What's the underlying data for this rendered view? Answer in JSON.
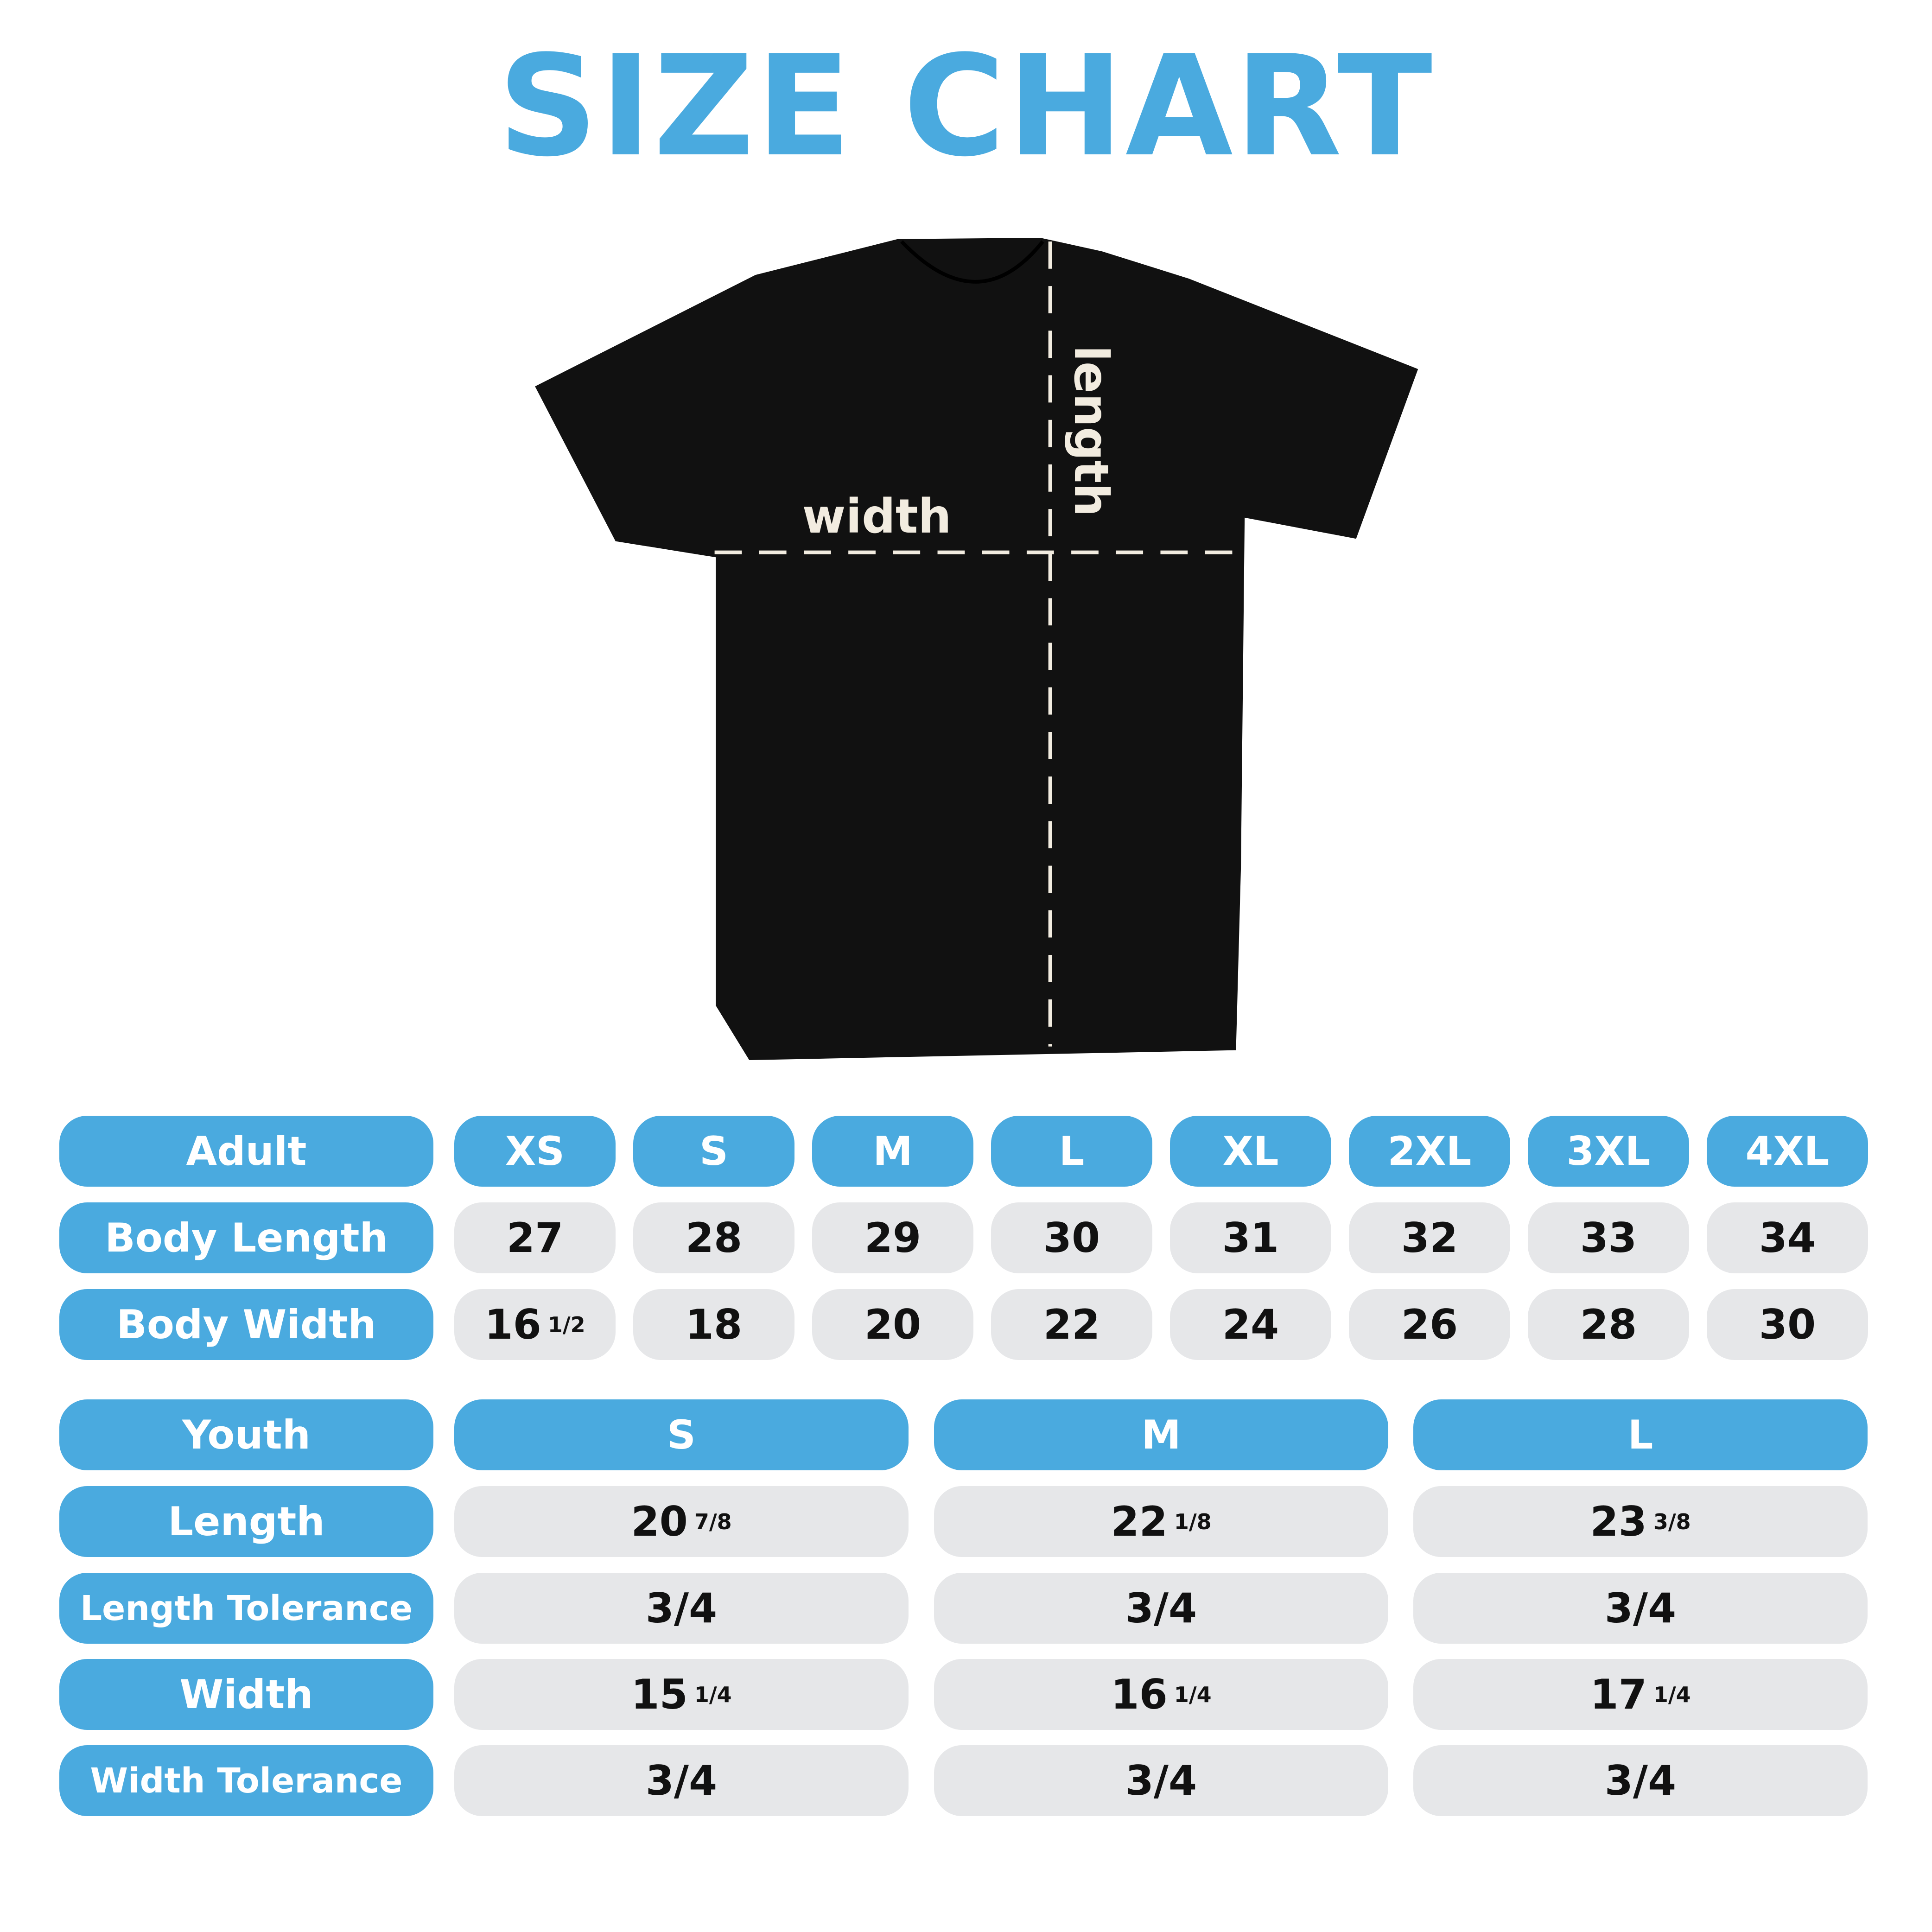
{
  "title": "SIZE CHART",
  "colors": {
    "accent": "#4aaadf",
    "cell_bg": "#e6e7e9",
    "shirt": "#111111"
  },
  "diagram": {
    "width_label": "width",
    "length_label": "length"
  },
  "adult": {
    "header_label": "Adult",
    "sizes": [
      "XS",
      "S",
      "M",
      "L",
      "XL",
      "2XL",
      "3XL",
      "4XL"
    ],
    "rows": [
      {
        "label": "Body Length",
        "values": [
          {
            "whole": "27"
          },
          {
            "whole": "28"
          },
          {
            "whole": "29"
          },
          {
            "whole": "30"
          },
          {
            "whole": "31"
          },
          {
            "whole": "32"
          },
          {
            "whole": "33"
          },
          {
            "whole": "34"
          }
        ]
      },
      {
        "label": "Body Width",
        "values": [
          {
            "whole": "16",
            "fraction": "1/2"
          },
          {
            "whole": "18"
          },
          {
            "whole": "20"
          },
          {
            "whole": "22"
          },
          {
            "whole": "24"
          },
          {
            "whole": "26"
          },
          {
            "whole": "28"
          },
          {
            "whole": "30"
          }
        ]
      }
    ]
  },
  "youth": {
    "header_label": "Youth",
    "sizes": [
      "S",
      "M",
      "L"
    ],
    "rows": [
      {
        "label": "Length",
        "values": [
          {
            "whole": "20",
            "fraction": "7/8"
          },
          {
            "whole": "22",
            "fraction": "1/8"
          },
          {
            "whole": "23",
            "fraction": "3/8"
          }
        ]
      },
      {
        "label": "Length Tolerance",
        "values": [
          {
            "whole": "3/4"
          },
          {
            "whole": "3/4"
          },
          {
            "whole": "3/4"
          }
        ]
      },
      {
        "label": "Width",
        "values": [
          {
            "whole": "15",
            "fraction": "1/4"
          },
          {
            "whole": "16",
            "fraction": "1/4"
          },
          {
            "whole": "17",
            "fraction": "1/4"
          }
        ]
      },
      {
        "label": "Width Tolerance",
        "values": [
          {
            "whole": "3/4"
          },
          {
            "whole": "3/4"
          },
          {
            "whole": "3/4"
          }
        ]
      }
    ]
  }
}
